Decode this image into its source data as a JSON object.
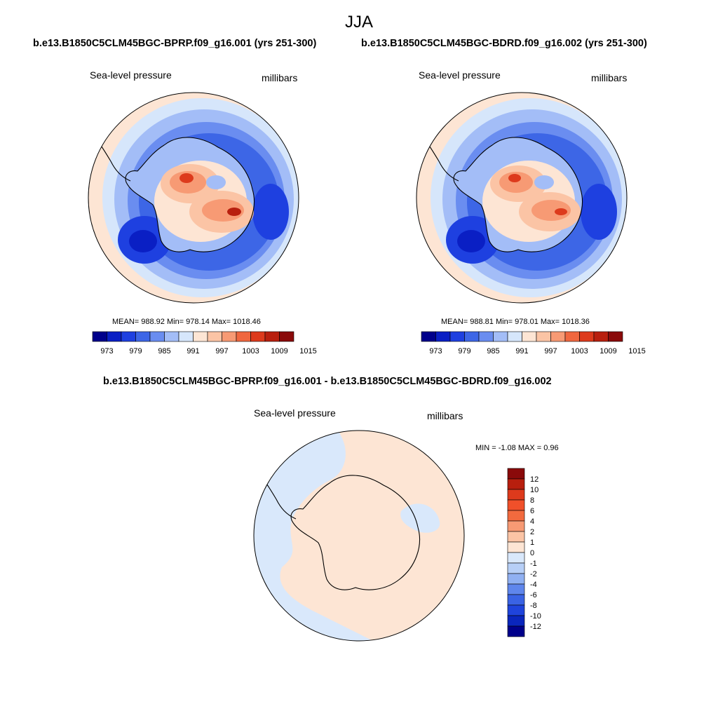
{
  "title": "JJA",
  "panels": [
    {
      "case_title": "b.e13.B1850C5CLM45BGC-BPRP.f09_g16.001 (yrs 251-300)",
      "variable": "Sea-level pressure",
      "units": "millibars",
      "stats_text": "MEAN= 988.92  Min= 978.14  Max= 1018.46",
      "mean": 988.92,
      "min": 978.14,
      "max": 1018.46
    },
    {
      "case_title": "b.e13.B1850C5CLM45BGC-BDRD.f09_g16.002 (yrs 251-300)",
      "variable": "Sea-level pressure",
      "units": "millibars",
      "stats_text": "MEAN= 988.81  Min= 978.01  Max= 1018.36",
      "mean": 988.81,
      "min": 978.01,
      "max": 1018.36
    }
  ],
  "colorbar_top": {
    "labels": [
      "973",
      "979",
      "985",
      "991",
      "997",
      "1003",
      "1009",
      "1015"
    ],
    "colors": [
      "#00008b",
      "#0a1fc4",
      "#1e40e0",
      "#3d66e6",
      "#6a8df0",
      "#a3bdf7",
      "#d6e6fb",
      "#fde5d4",
      "#fbc4a5",
      "#f79a74",
      "#f0673f",
      "#dd3a1c",
      "#b81f0e",
      "#8a0a0a"
    ]
  },
  "difference_panel": {
    "case_title": "b.e13.B1850C5CLM45BGC-BPRP.f09_g16.001 - b.e13.B1850C5CLM45BGC-BDRD.f09_g16.002",
    "variable": "Sea-level pressure",
    "units": "millibars",
    "stats_text": "MIN =  -1.08 MAX =   0.96",
    "min": -1.08,
    "max": 0.96
  },
  "colorbar_diff": {
    "labels": [
      "12",
      "10",
      "8",
      "6",
      "4",
      "2",
      "1",
      "0",
      "-1",
      "-2",
      "-4",
      "-6",
      "-8",
      "-10",
      "-12"
    ],
    "colors": [
      "#8a0a0a",
      "#b81f0e",
      "#dd3a1c",
      "#f0502a",
      "#f26a3e",
      "#f79a74",
      "#fbc4a5",
      "#fde5d4",
      "#d9e8fb",
      "#b7cff7",
      "#90b0f2",
      "#5f86ec",
      "#3a63e4",
      "#1f44dc",
      "#0a26bd",
      "#00008b"
    ]
  },
  "colors": {
    "land_outline": "#000000",
    "diff_positive": "#fde5d4",
    "diff_negative": "#d9e8fb"
  }
}
